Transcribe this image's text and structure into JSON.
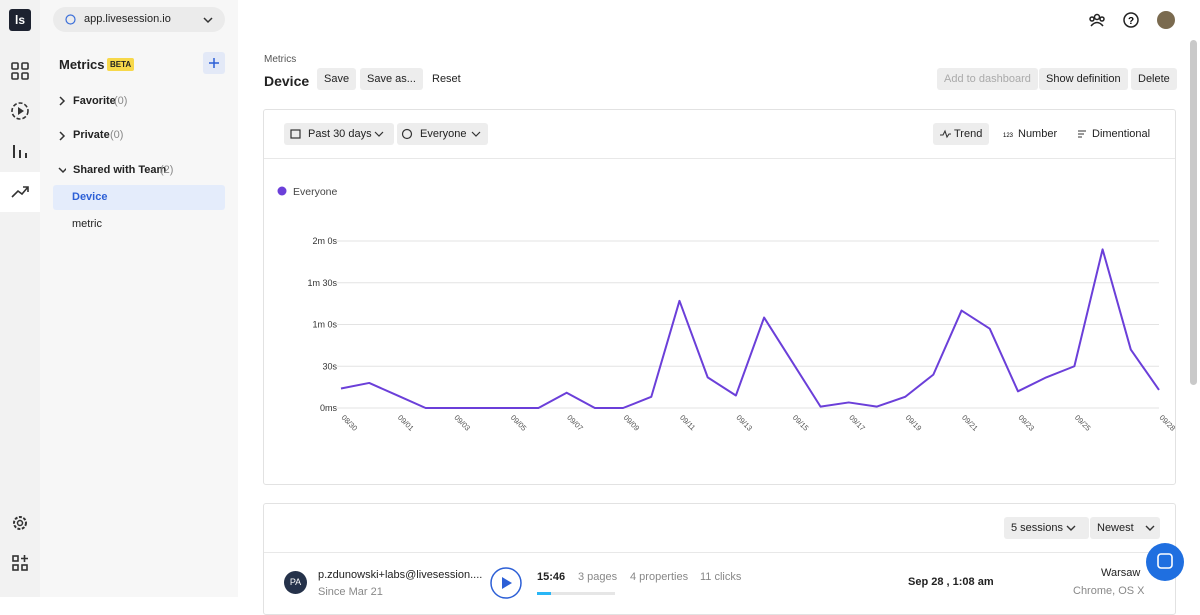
{
  "app": {
    "logo": "ls",
    "domain": "app.livesession.io"
  },
  "sidebar": {
    "title": "Metrics",
    "badge": "BETA",
    "groups": [
      {
        "name": "Favorite",
        "count": "(0)"
      },
      {
        "name": "Private",
        "count": "(0)"
      },
      {
        "name": "Shared with Team",
        "count": "(2)",
        "items": [
          "Device",
          "metric"
        ]
      }
    ]
  },
  "header": {
    "breadcrumb": "Metrics",
    "title": "Device",
    "buttons": [
      "Save",
      "Save as...",
      "Reset"
    ],
    "actions": [
      "Add to dashboard",
      "Show definition",
      "Delete"
    ]
  },
  "toolbar": {
    "filters": [
      "Past 30 days",
      "Everyone"
    ],
    "views": [
      "Trend",
      "Number",
      "Dimentional"
    ]
  },
  "chart_data": {
    "type": "line",
    "categories": [
      "08/30",
      null,
      "09/01",
      null,
      "09/03",
      null,
      "09/05",
      null,
      "09/07",
      null,
      "09/09",
      null,
      "09/11",
      null,
      "09/13",
      null,
      "09/15",
      null,
      "09/17",
      null,
      "09/19",
      null,
      "09/21",
      null,
      "09/23",
      null,
      "09/25",
      null,
      null,
      "09/28"
    ],
    "series": [
      {
        "name": "Everyone",
        "color": "#6b3fd9",
        "values": [
          14,
          18,
          9,
          0,
          0,
          0,
          0,
          0,
          11,
          0,
          0,
          8,
          77,
          22,
          9,
          65,
          33,
          1,
          4,
          1,
          8,
          24,
          70,
          57,
          12,
          22,
          30,
          114,
          42,
          13
        ]
      }
    ],
    "ylim": [
      0,
      120
    ],
    "yticks": [
      {
        "value": 0,
        "label": "0ms"
      },
      {
        "value": 30,
        "label": "30s"
      },
      {
        "value": 60,
        "label": "1m 0s"
      },
      {
        "value": 90,
        "label": "1m 30s"
      },
      {
        "value": 120,
        "label": "2m 0s"
      }
    ],
    "grid": true,
    "legend": "top-left"
  },
  "sessions": {
    "count": "5 sessions",
    "sort": "Newest",
    "rows": [
      {
        "initials": "PA",
        "email": "p.zdunowski+labs@livesession....",
        "since": "Since Mar 21",
        "duration": "15:46",
        "pages": "3 pages",
        "properties": "4 properties",
        "clicks": "11 clicks",
        "date": "Sep 28 , 1:08 am",
        "city": "Warsaw",
        "system": "Chrome, OS X"
      }
    ]
  }
}
